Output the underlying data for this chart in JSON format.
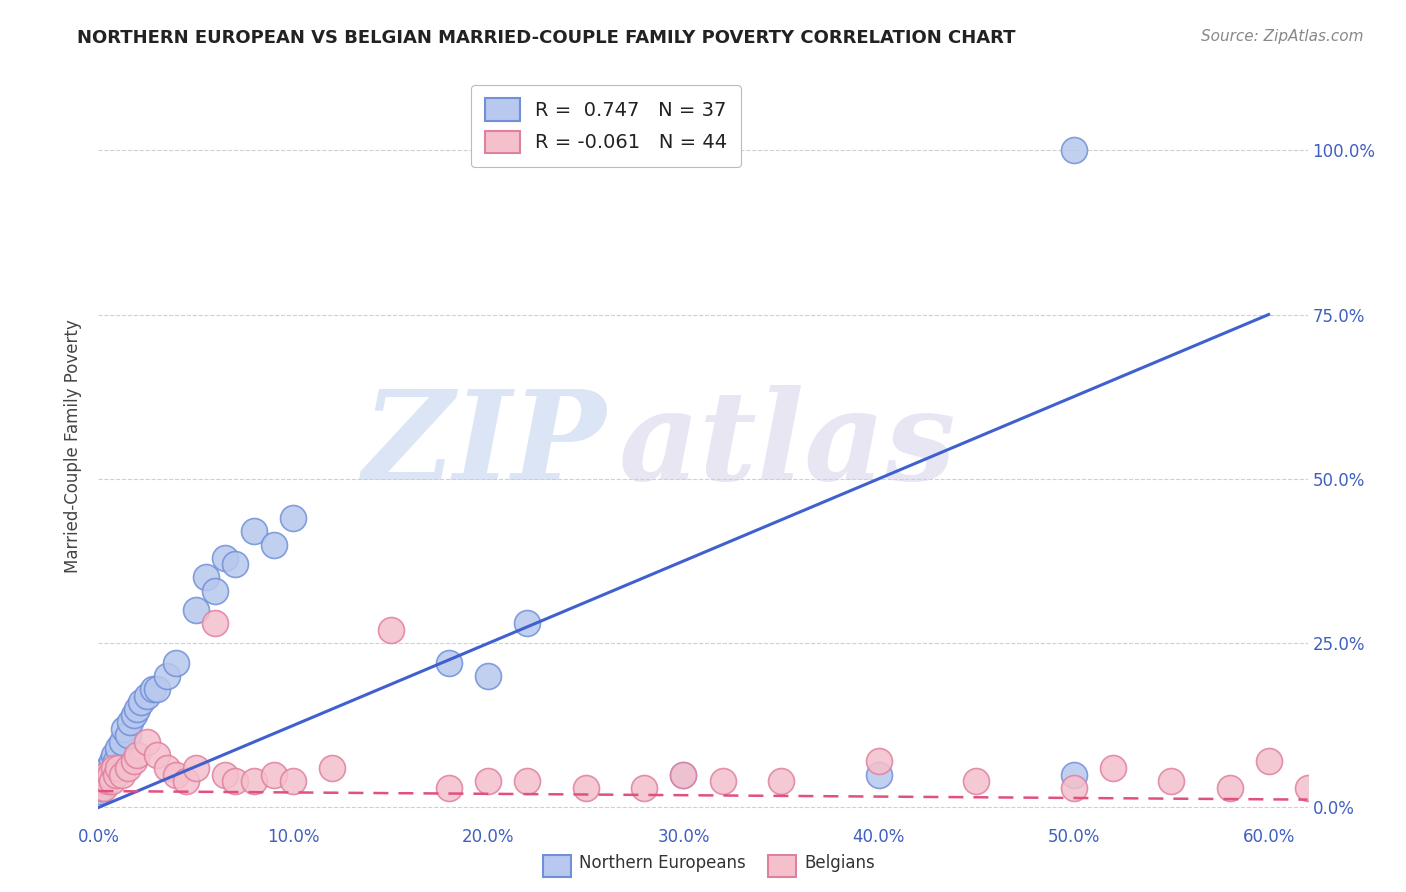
{
  "title": "NORTHERN EUROPEAN VS BELGIAN MARRIED-COUPLE FAMILY POVERTY CORRELATION CHART",
  "source": "Source: ZipAtlas.com",
  "ylabel": "Married-Couple Family Poverty",
  "watermark_zip": "ZIP",
  "watermark_atlas": "atlas",
  "xlim": [
    0.0,
    0.62
  ],
  "ylim": [
    -0.02,
    1.12
  ],
  "xticks": [
    0.0,
    0.1,
    0.2,
    0.3,
    0.4,
    0.5,
    0.6
  ],
  "xticklabels": [
    "0.0%",
    "10.0%",
    "20.0%",
    "30.0%",
    "40.0%",
    "50.0%",
    "60.0%"
  ],
  "yticks": [
    0.0,
    0.25,
    0.5,
    0.75,
    1.0
  ],
  "yticklabels": [
    "0.0%",
    "25.0%",
    "50.0%",
    "75.0%",
    "100.0%"
  ],
  "blue_color": "#b8c8ee",
  "blue_edge": "#7090d8",
  "pink_color": "#f4c0cc",
  "pink_edge": "#e080a0",
  "trendline_blue": "#4060d0",
  "trendline_pink": "#e05080",
  "legend_R_blue": " 0.747",
  "legend_N_blue": "37",
  "legend_R_pink": "-0.061",
  "legend_N_pink": "44",
  "legend_label_blue": "Northern Europeans",
  "legend_label_pink": "Belgians",
  "blue_trendline_x": [
    0.0,
    0.6
  ],
  "blue_trendline_y": [
    0.0,
    0.75
  ],
  "pink_trendline_x": [
    0.0,
    0.62
  ],
  "pink_trendline_y": [
    0.025,
    0.012
  ],
  "blue_x": [
    0.001,
    0.002,
    0.003,
    0.004,
    0.005,
    0.006,
    0.007,
    0.008,
    0.009,
    0.01,
    0.012,
    0.013,
    0.015,
    0.016,
    0.018,
    0.02,
    0.022,
    0.025,
    0.028,
    0.03,
    0.035,
    0.04,
    0.05,
    0.055,
    0.06,
    0.065,
    0.07,
    0.08,
    0.09,
    0.1,
    0.18,
    0.2,
    0.22,
    0.3,
    0.4,
    0.5,
    0.5
  ],
  "blue_y": [
    0.025,
    0.03,
    0.04,
    0.05,
    0.06,
    0.05,
    0.07,
    0.08,
    0.07,
    0.09,
    0.1,
    0.12,
    0.11,
    0.13,
    0.14,
    0.15,
    0.16,
    0.17,
    0.18,
    0.18,
    0.2,
    0.22,
    0.3,
    0.35,
    0.33,
    0.38,
    0.37,
    0.42,
    0.4,
    0.44,
    0.22,
    0.2,
    0.28,
    0.05,
    0.05,
    0.05,
    1.0
  ],
  "pink_x": [
    0.001,
    0.002,
    0.003,
    0.004,
    0.005,
    0.006,
    0.007,
    0.008,
    0.009,
    0.01,
    0.012,
    0.015,
    0.018,
    0.02,
    0.025,
    0.03,
    0.035,
    0.04,
    0.045,
    0.05,
    0.06,
    0.065,
    0.07,
    0.08,
    0.09,
    0.1,
    0.12,
    0.15,
    0.18,
    0.2,
    0.22,
    0.25,
    0.28,
    0.3,
    0.32,
    0.35,
    0.4,
    0.45,
    0.5,
    0.52,
    0.55,
    0.58,
    0.6,
    0.62
  ],
  "pink_y": [
    0.03,
    0.04,
    0.03,
    0.05,
    0.04,
    0.05,
    0.04,
    0.06,
    0.05,
    0.06,
    0.05,
    0.06,
    0.07,
    0.08,
    0.1,
    0.08,
    0.06,
    0.05,
    0.04,
    0.06,
    0.28,
    0.05,
    0.04,
    0.04,
    0.05,
    0.04,
    0.06,
    0.27,
    0.03,
    0.04,
    0.04,
    0.03,
    0.03,
    0.05,
    0.04,
    0.04,
    0.07,
    0.04,
    0.03,
    0.06,
    0.04,
    0.03,
    0.07,
    0.03
  ],
  "background_color": "#ffffff",
  "grid_color": "#d0d0d0",
  "tick_color": "#4060c0",
  "title_fontsize": 13,
  "source_fontsize": 11,
  "tick_fontsize": 12,
  "ylabel_fontsize": 12
}
